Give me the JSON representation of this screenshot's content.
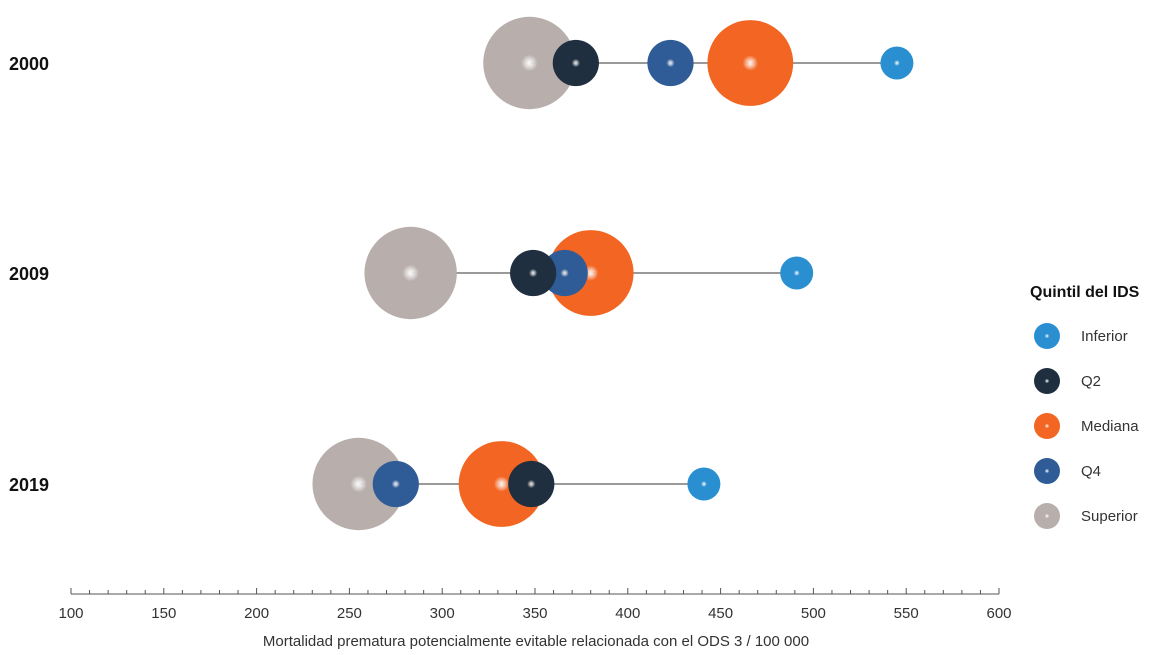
{
  "chart_data": {
    "type": "scatter",
    "title": "",
    "xlabel": "Mortalidad prematura potencialmente evitable relacionada con el ODS 3 / 100 000",
    "ylabel": "",
    "xlim": [
      100,
      600
    ],
    "xticks": [
      100,
      150,
      200,
      250,
      300,
      350,
      400,
      450,
      500,
      550,
      600
    ],
    "grid": false,
    "legend": {
      "title": "Quintil del IDS",
      "position": "right"
    },
    "categories": [
      "2000",
      "2009",
      "2019"
    ],
    "series": [
      {
        "name": "Inferior",
        "color": "#2a8fd0",
        "size": 1,
        "values": [
          545,
          491,
          441
        ]
      },
      {
        "name": "Q2",
        "color": "#1f2f40",
        "size": 1.4,
        "values": [
          372,
          349,
          348
        ]
      },
      {
        "name": "Mediana",
        "color": "#f26522",
        "size": 2.6,
        "values": [
          466,
          380,
          332
        ]
      },
      {
        "name": "Q4",
        "color": "#2f5c96",
        "size": 1.4,
        "values": [
          423,
          366,
          275
        ]
      },
      {
        "name": "Superior",
        "color": "#b8aeab",
        "size": 2.8,
        "values": [
          347,
          283,
          255
        ]
      }
    ]
  }
}
